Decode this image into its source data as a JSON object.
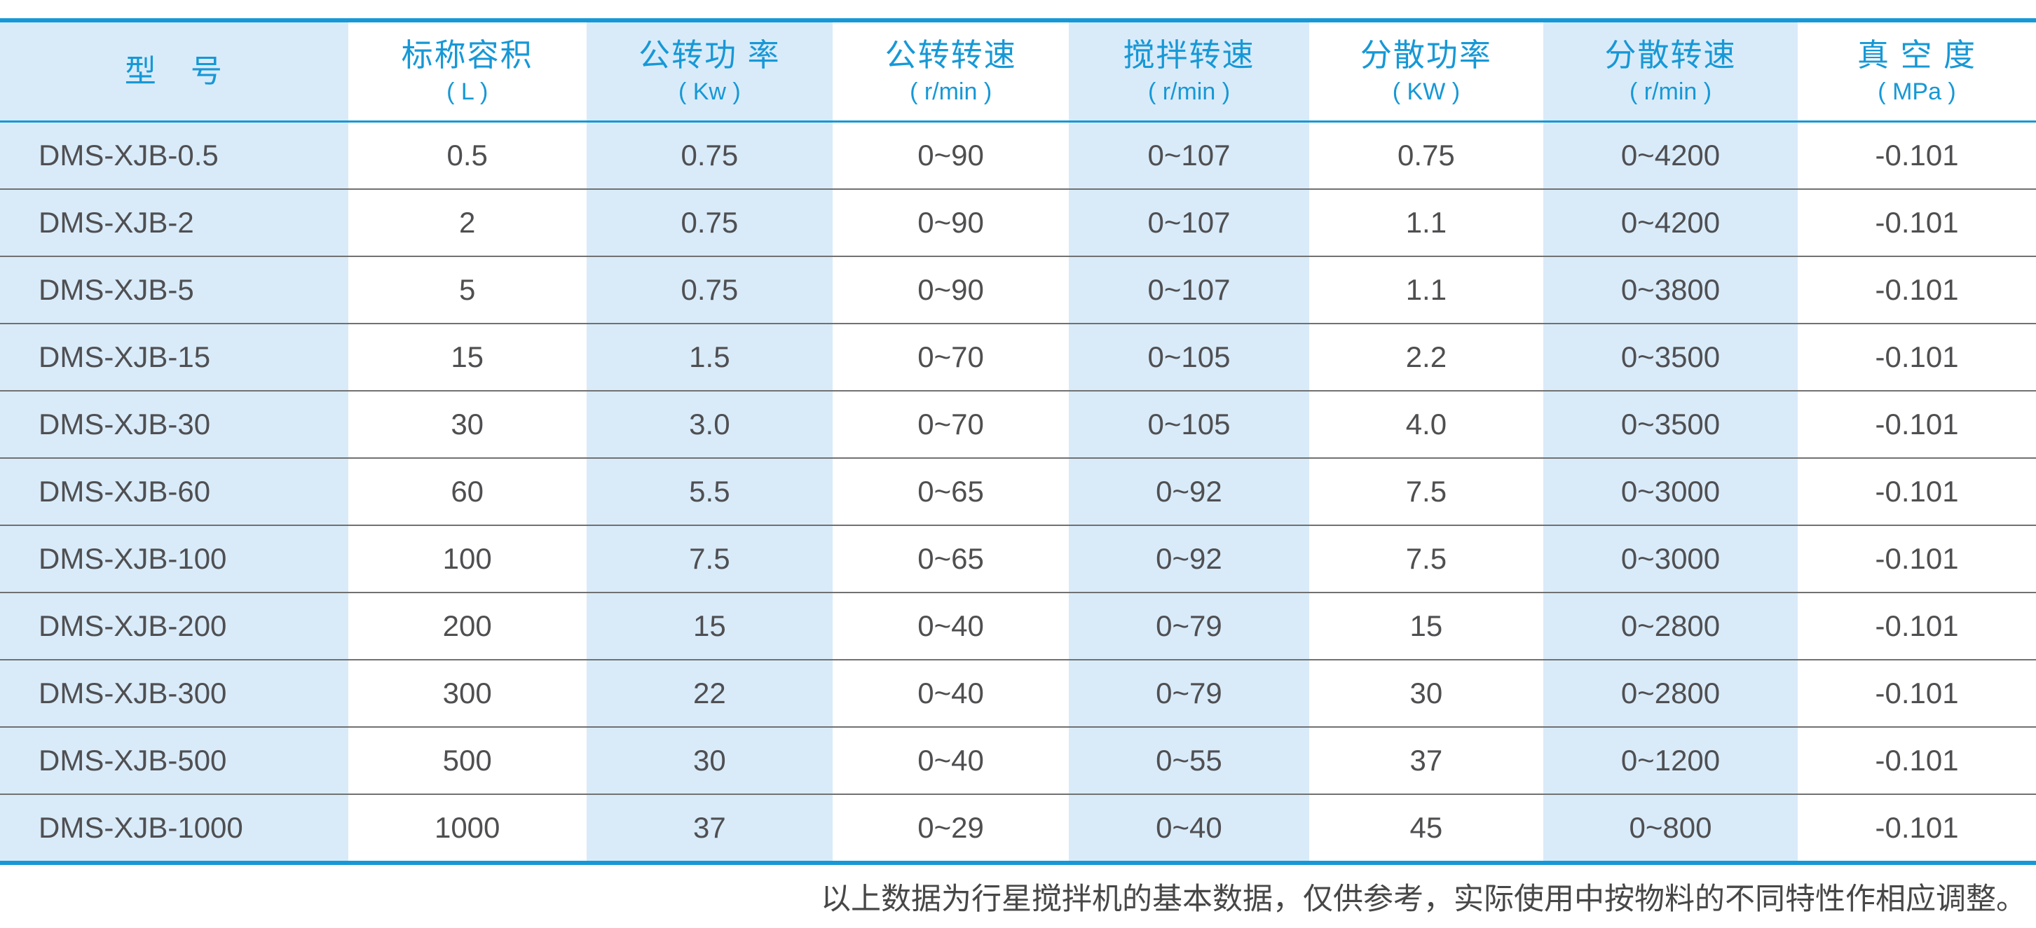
{
  "table": {
    "columns": [
      {
        "title": "型　号",
        "unit": ""
      },
      {
        "title": "标称容积",
        "unit": "( L )"
      },
      {
        "title": "公转功 率",
        "unit": "( Kw )"
      },
      {
        "title": "公转转速",
        "unit": "( r/min )"
      },
      {
        "title": "搅拌转速",
        "unit": "( r/min )"
      },
      {
        "title": "分散功率",
        "unit": "( KW )"
      },
      {
        "title": "分散转速",
        "unit": "( r/min )"
      },
      {
        "title": "真 空 度",
        "unit": "( MPa )"
      }
    ],
    "rows": [
      [
        "DMS-XJB-0.5",
        "0.5",
        "0.75",
        "0~90",
        "0~107",
        "0.75",
        "0~4200",
        "-0.101"
      ],
      [
        "DMS-XJB-2",
        "2",
        "0.75",
        "0~90",
        "0~107",
        "1.1",
        "0~4200",
        "-0.101"
      ],
      [
        "DMS-XJB-5",
        "5",
        "0.75",
        "0~90",
        "0~107",
        "1.1",
        "0~3800",
        "-0.101"
      ],
      [
        "DMS-XJB-15",
        "15",
        "1.5",
        "0~70",
        "0~105",
        "2.2",
        "0~3500",
        "-0.101"
      ],
      [
        "DMS-XJB-30",
        "30",
        "3.0",
        "0~70",
        "0~105",
        "4.0",
        "0~3500",
        "-0.101"
      ],
      [
        "DMS-XJB-60",
        "60",
        "5.5",
        "0~65",
        "0~92",
        "7.5",
        "0~3000",
        "-0.101"
      ],
      [
        "DMS-XJB-100",
        "100",
        "7.5",
        "0~65",
        "0~92",
        "7.5",
        "0~3000",
        "-0.101"
      ],
      [
        "DMS-XJB-200",
        "200",
        "15",
        "0~40",
        "0~79",
        "15",
        "0~2800",
        "-0.101"
      ],
      [
        "DMS-XJB-300",
        "300",
        "22",
        "0~40",
        "0~79",
        "30",
        "0~2800",
        "-0.101"
      ],
      [
        "DMS-XJB-500",
        "500",
        "30",
        "0~40",
        "0~55",
        "37",
        "0~1200",
        "-0.101"
      ],
      [
        "DMS-XJB-1000",
        "1000",
        "37",
        "0~29",
        "0~40",
        "45",
        "0~800",
        "-0.101"
      ]
    ]
  },
  "footnote": "以上数据为行星搅拌机的基本数据，仅供参考，实际使用中按物料的不同特性作相应调整。",
  "colors": {
    "accent_blue": "#1798D6",
    "stripe_light_blue": "#D9EBF9",
    "data_text": "#4F4F52",
    "row_divider": "#717171"
  }
}
